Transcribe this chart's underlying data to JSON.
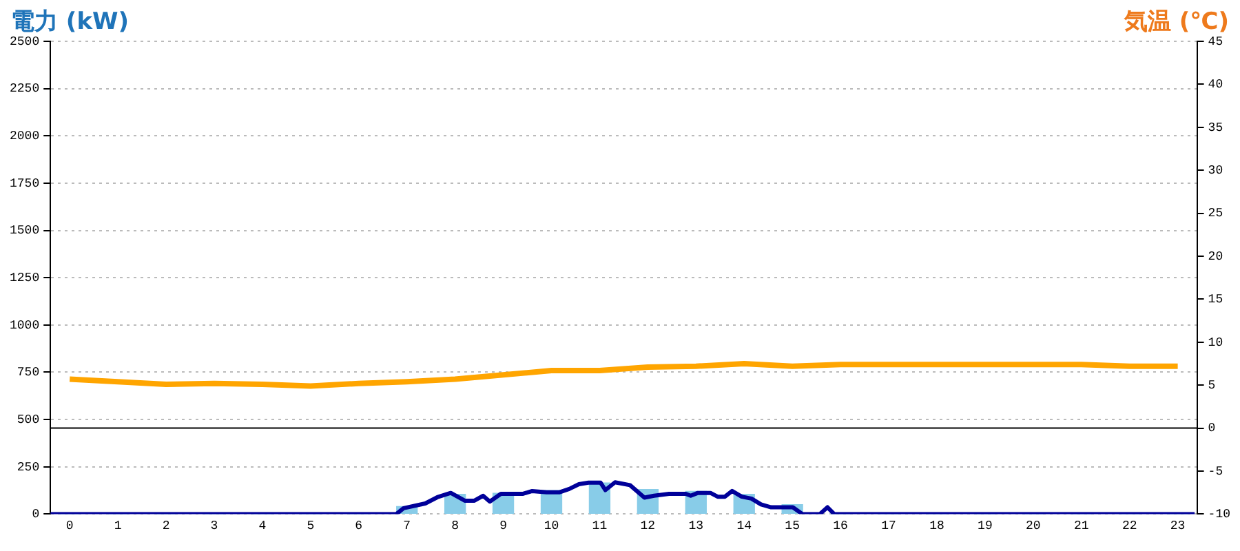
{
  "chart_data": {
    "type": "bar",
    "ylabel": "電力 (kW)",
    "y2label": "気温 (℃)",
    "xlim": [
      -0.4,
      23.4
    ],
    "xticks": [
      0,
      1,
      2,
      3,
      4,
      5,
      6,
      7,
      8,
      9,
      10,
      11,
      12,
      13,
      14,
      15,
      16,
      17,
      18,
      19,
      20,
      21,
      22,
      23
    ],
    "ylim": [
      0,
      2500
    ],
    "yticks": [
      0,
      250,
      500,
      750,
      1000,
      1250,
      1500,
      1750,
      2000,
      2250,
      2500
    ],
    "y2lim": [
      -10,
      45
    ],
    "y2ticks": [
      -10,
      -5,
      0,
      5,
      10,
      15,
      20,
      25,
      30,
      35,
      40,
      45
    ],
    "grid": "y",
    "legend": false,
    "marker": "none",
    "line_style": "solid",
    "ref_lines": [
      {
        "axis": "y2",
        "value": 0,
        "color": "#000000"
      }
    ],
    "series": [
      {
        "color": "#88cce8",
        "x": [
          0,
          1,
          2,
          3,
          4,
          5,
          6,
          7,
          8,
          9,
          10,
          11,
          12,
          13,
          14,
          15,
          16,
          17,
          18,
          19,
          20,
          21,
          22,
          23
        ],
        "values": [
          0,
          0,
          0,
          0,
          0,
          0,
          0,
          40,
          105,
          110,
          125,
          165,
          130,
          120,
          105,
          50,
          0,
          0,
          0,
          0,
          0,
          0,
          0,
          0
        ]
      },
      {
        "type": "line",
        "color": "#000099",
        "x": [
          -0.4,
          6.78,
          6.93,
          7.38,
          7.63,
          7.91,
          8.2,
          8.4,
          8.58,
          8.72,
          8.95,
          9.4,
          9.6,
          9.9,
          10.16,
          10.37,
          10.57,
          10.77,
          11.02,
          11.12,
          11.32,
          11.63,
          11.93,
          12.13,
          12.44,
          12.79,
          12.89,
          13.04,
          13.3,
          13.45,
          13.6,
          13.75,
          13.95,
          14.15,
          14.35,
          14.56,
          15.01,
          15.21,
          15.57,
          15.73,
          15.87,
          23.35
        ],
        "values": [
          0,
          0,
          31,
          56,
          89,
          112,
          71,
          71,
          97,
          66,
          107,
          107,
          122,
          115,
          115,
          133,
          158,
          166,
          166,
          127,
          168,
          153,
          87,
          97,
          107,
          107,
          97,
          112,
          112,
          92,
          92,
          122,
          92,
          82,
          51,
          36,
          36,
          0,
          0,
          36,
          0,
          0
        ]
      },
      {
        "type": "line",
        "axis": "y2",
        "color": "#ffa500",
        "x": [
          0,
          1,
          2,
          3,
          4,
          5,
          6,
          7,
          8,
          9,
          10,
          11,
          12,
          13,
          14,
          15,
          16,
          17,
          18,
          19,
          20,
          21,
          22,
          23
        ],
        "values": [
          5.7,
          5.4,
          5.1,
          5.2,
          5.1,
          4.9,
          5.2,
          5.4,
          5.7,
          6.2,
          6.7,
          6.7,
          7.1,
          7.2,
          7.5,
          7.2,
          7.4,
          7.4,
          7.4,
          7.4,
          7.4,
          7.4,
          7.2,
          7.2
        ]
      }
    ]
  }
}
